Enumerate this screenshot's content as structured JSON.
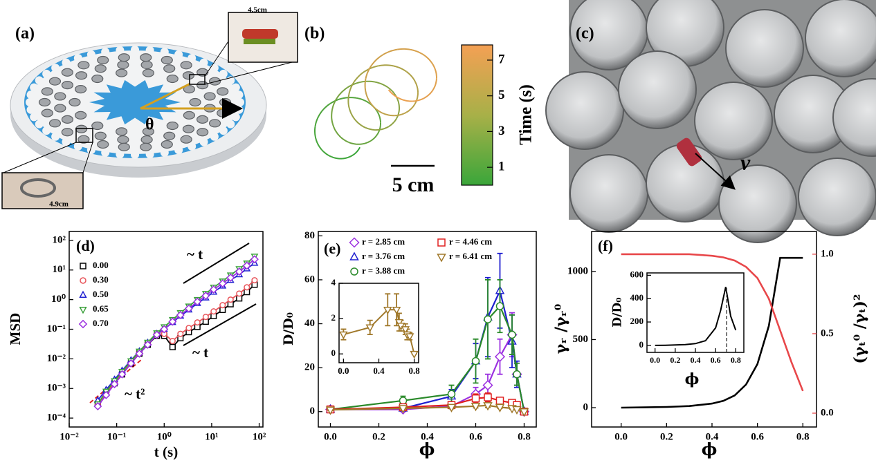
{
  "panels": {
    "a": {
      "label": "(a)",
      "width_label": "4.5cm",
      "angle_label": "θ",
      "height_label": "4.9cm"
    },
    "b": {
      "label": "(b)",
      "scale_label": "5 cm",
      "colorbar": {
        "label": "Time (s)",
        "lim": [
          0,
          7.85
        ],
        "ticks": [
          1,
          3,
          5,
          7
        ]
      }
    },
    "c": {
      "label": "(c)",
      "velocity_label": "ν"
    }
  },
  "chart_data": [
    {
      "type": "line",
      "panel_label": "(d)",
      "x_label": "t (s)",
      "y_label": "MSD",
      "log_x": true,
      "log_y": true,
      "xlim": [
        0.01,
        120
      ],
      "ylim": [
        5e-05,
        200
      ],
      "xticks": [
        {
          "value": 0.01,
          "label": "10⁻²"
        },
        {
          "value": 0.1,
          "label": "10⁻¹"
        },
        {
          "value": 1,
          "label": "10⁰"
        },
        {
          "value": 10,
          "label": "10¹"
        },
        {
          "value": 100,
          "label": "10²"
        }
      ],
      "yticks": [
        {
          "value": 0.0001,
          "label": "10⁻⁴"
        },
        {
          "value": 0.001,
          "label": "10⁻³"
        },
        {
          "value": 0.01,
          "label": "10⁻²"
        },
        {
          "value": 0.1,
          "label": "10⁻¹"
        },
        {
          "value": 1,
          "label": "10⁰"
        },
        {
          "value": 10,
          "label": "10¹"
        },
        {
          "value": 100,
          "label": "10²"
        }
      ],
      "x": [
        0.04,
        0.06,
        0.09,
        0.13,
        0.2,
        0.3,
        0.45,
        0.7,
        1,
        1.5,
        2.2,
        3.3,
        5,
        7.5,
        11,
        17,
        25,
        38,
        55,
        80
      ],
      "series": [
        {
          "name": "0.00",
          "color": "#000000",
          "marker": "square",
          "values": [
            0.0003,
            0.0007,
            0.0015,
            0.003,
            0.007,
            0.015,
            0.03,
            0.06,
            0.06,
            0.025,
            0.05,
            0.08,
            0.12,
            0.18,
            0.28,
            0.45,
            0.7,
            1.1,
            1.8,
            3.2
          ]
        },
        {
          "name": "0.30",
          "color": "#e8545a",
          "marker": "circle",
          "values": [
            0.0003,
            0.0007,
            0.0016,
            0.0032,
            0.0075,
            0.016,
            0.032,
            0.065,
            0.07,
            0.04,
            0.07,
            0.11,
            0.17,
            0.26,
            0.4,
            0.65,
            1.0,
            1.6,
            2.6,
            4.5
          ]
        },
        {
          "name": "0.50",
          "color": "#1f1fd0",
          "marker": "tri-up",
          "values": [
            0.0004,
            0.0009,
            0.002,
            0.004,
            0.009,
            0.018,
            0.035,
            0.07,
            0.1,
            0.17,
            0.28,
            0.45,
            0.75,
            1.15,
            1.8,
            2.9,
            4.5,
            7,
            11,
            17
          ]
        },
        {
          "name": "0.65",
          "color": "#3aa03a",
          "marker": "tri-down",
          "values": [
            0.0003,
            0.0008,
            0.0018,
            0.0037,
            0.0085,
            0.018,
            0.036,
            0.075,
            0.12,
            0.21,
            0.36,
            0.6,
            1.0,
            1.6,
            2.6,
            4.2,
            6.7,
            11,
            17,
            29
          ]
        },
        {
          "name": "0.70",
          "color": "#9b30e0",
          "marker": "diamond",
          "values": [
            0.00025,
            0.0006,
            0.0014,
            0.003,
            0.007,
            0.015,
            0.03,
            0.065,
            0.1,
            0.18,
            0.3,
            0.5,
            0.85,
            1.35,
            2.2,
            3.5,
            5.5,
            8.8,
            14,
            23
          ]
        }
      ],
      "annotations": [
        "~ t",
        "~ t",
        "~ t²"
      ],
      "annotation_colors": [
        "#000000",
        "#000000",
        "#e02020"
      ]
    },
    {
      "type": "line",
      "panel_label": "(e)",
      "x_label": "ϕ",
      "y_label": "D/D₀",
      "xlim": [
        -0.05,
        0.85
      ],
      "ylim": [
        -7,
        82
      ],
      "xticks": [
        {
          "value": 0,
          "label": "0.0"
        },
        {
          "value": 0.2,
          "label": "0.2"
        },
        {
          "value": 0.4,
          "label": "0.4"
        },
        {
          "value": 0.6,
          "label": "0.6"
        },
        {
          "value": 0.8,
          "label": "0.8"
        }
      ],
      "yticks": [
        0,
        20,
        40,
        60,
        80
      ],
      "x": [
        0,
        0.3,
        0.5,
        0.6,
        0.65,
        0.7,
        0.75,
        0.77,
        0.8
      ],
      "series": [
        {
          "name": "r = 2.85 cm",
          "color": "#9b30e0",
          "marker": "diamond",
          "values": [
            1,
            1,
            2.5,
            8,
            12,
            25,
            35,
            17,
            0
          ],
          "errors": [
            0.5,
            0.5,
            1,
            3,
            5,
            8,
            10,
            5,
            0
          ]
        },
        {
          "name": "r = 3.76 cm",
          "color": "#1f1fd0",
          "marker": "tri-up",
          "values": [
            1,
            1.5,
            7,
            23,
            43,
            55,
            32,
            17,
            0
          ],
          "errors": [
            1,
            1,
            3,
            8,
            18,
            17,
            12,
            6,
            0
          ]
        },
        {
          "name": "r = 3.88 cm",
          "color": "#2a8a2a",
          "marker": "circle",
          "values": [
            1,
            5,
            8,
            23,
            42,
            48,
            35,
            17,
            0
          ],
          "errors": [
            1,
            2,
            4,
            10,
            18,
            12,
            9,
            5,
            0
          ]
        },
        {
          "name": "r = 4.46 cm",
          "color": "#e02020",
          "marker": "square",
          "values": [
            1,
            2,
            3,
            6,
            6.5,
            5,
            4,
            3,
            0
          ],
          "errors": [
            0.5,
            0.5,
            1,
            2,
            2,
            1.5,
            1,
            1,
            0
          ]
        },
        {
          "name": "r = 6.41 cm",
          "color": "#a0782a",
          "marker": "tri-down",
          "values": [
            0.8,
            1.5,
            2,
            2.5,
            2.8,
            2,
            1.5,
            1,
            0
          ],
          "errors": [
            0.3,
            0.5,
            0.7,
            0.8,
            0.9,
            0.5,
            0.4,
            0.3,
            0
          ]
        }
      ],
      "inset": {
        "xlim": [
          -0.05,
          0.85
        ],
        "ylim": [
          -0.5,
          4
        ],
        "xticks": [
          {
            "value": 0,
            "label": "0.0"
          },
          {
            "value": 0.4,
            "label": "0.4"
          },
          {
            "value": 0.8,
            "label": "0.8"
          }
        ],
        "yticks": [
          0,
          2,
          4
        ],
        "x": [
          0,
          0.3,
          0.5,
          0.6,
          0.63,
          0.65,
          0.7,
          0.72,
          0.75,
          0.8
        ],
        "color": "#a0782a",
        "marker": "tri-down",
        "values": [
          1.1,
          1.5,
          2.5,
          2.5,
          1.8,
          1.6,
          1.4,
          1.1,
          1.0,
          0
        ],
        "errors": [
          0.3,
          0.4,
          0.9,
          0.9,
          0.5,
          0.3,
          0.3,
          0.3,
          0.2,
          0
        ]
      }
    },
    {
      "type": "line",
      "panel_label": "(f)",
      "x_label": "ϕ",
      "y_label": "γᵣ /γᵣ⁰",
      "y2_label": "(γₜ⁰ /γₜ)²",
      "xlim": [
        -0.13,
        0.86
      ],
      "ylim": [
        -142,
        1294
      ],
      "y2lim": [
        -0.087,
        1.143
      ],
      "xticks": [
        {
          "value": 0,
          "label": "0.0"
        },
        {
          "value": 0.2,
          "label": "0.2"
        },
        {
          "value": 0.4,
          "label": "0.4"
        },
        {
          "value": 0.6,
          "label": "0.6"
        },
        {
          "value": 0.8,
          "label": "0.8"
        }
      ],
      "yticks": [
        0,
        500,
        1000
      ],
      "y2ticks": [
        {
          "value": 0,
          "label": "0.0"
        },
        {
          "value": 0.5,
          "label": "0.5"
        },
        {
          "value": 1,
          "label": "1.0"
        }
      ],
      "x": [
        0,
        0.1,
        0.2,
        0.3,
        0.4,
        0.45,
        0.5,
        0.55,
        0.6,
        0.65,
        0.7,
        0.75,
        0.8
      ],
      "series": [
        {
          "color": "#000000",
          "values": [
            0,
            2,
            5,
            12,
            30,
            50,
            90,
            170,
            320,
            600,
            1100,
            1100,
            1100
          ]
        },
        {
          "color": "#e8474a",
          "axis": "y2",
          "values": [
            1,
            1,
            1,
            1,
            0.99,
            0.98,
            0.96,
            0.92,
            0.85,
            0.72,
            0.52,
            0.32,
            0.14
          ]
        }
      ],
      "inset": {
        "x_label": "ϕ",
        "y_label": "D/D₀",
        "xlim": [
          -0.08,
          0.88
        ],
        "ylim": [
          -60,
          620
        ],
        "xticks": [
          {
            "value": 0,
            "label": "0.0"
          },
          {
            "value": 0.2,
            "label": "0.2"
          },
          {
            "value": 0.4,
            "label": "0.4"
          },
          {
            "value": 0.6,
            "label": "0.6"
          },
          {
            "value": 0.8,
            "label": "0.8"
          }
        ],
        "yticks": [
          0,
          200,
          400,
          600
        ],
        "x": [
          0,
          0.1,
          0.2,
          0.3,
          0.4,
          0.5,
          0.6,
          0.65,
          0.7,
          0.72,
          0.75,
          0.8
        ],
        "values": [
          0,
          1,
          3,
          6,
          15,
          40,
          150,
          300,
          500,
          400,
          250,
          130
        ],
        "color": "#000000",
        "vline": 0.71
      }
    }
  ]
}
